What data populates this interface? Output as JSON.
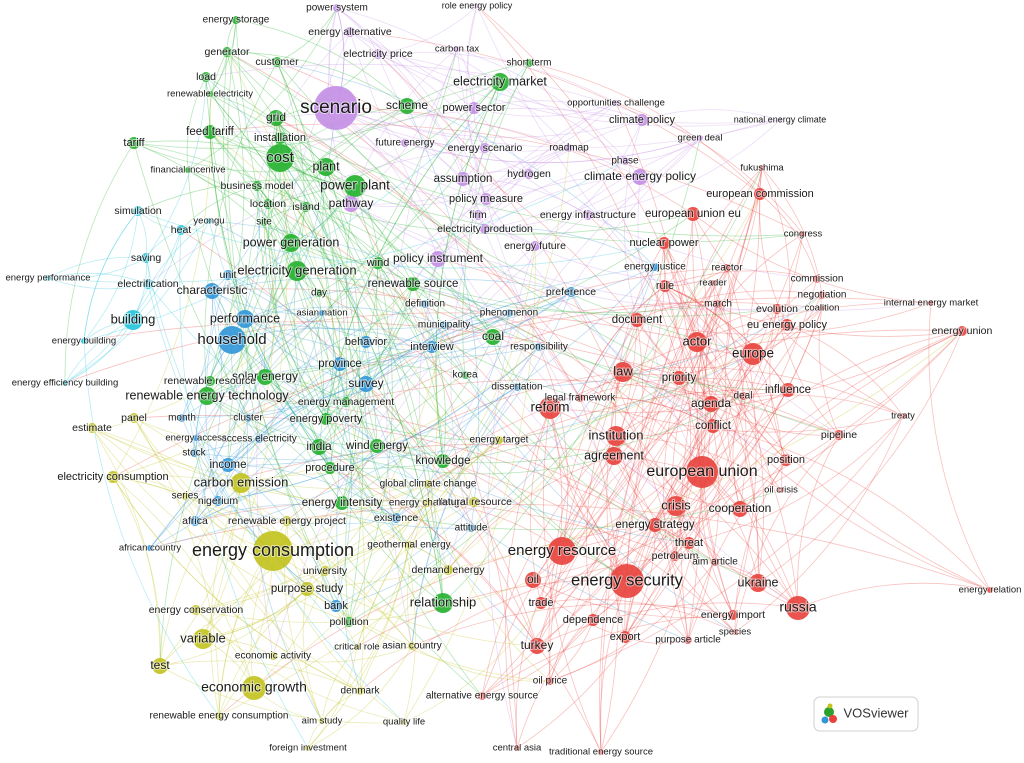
{
  "clusters": [
    {
      "color": "#e8403b",
      "nodes": [
        "fukushima",
        "european commission",
        "european union eu",
        "congress",
        "nuclear power",
        "reactor",
        "reader",
        "rule",
        "commission",
        "negotiation",
        "march",
        "evolution",
        "coalition",
        "internal energy market",
        "energy union",
        "document",
        "actor",
        "eu energy policy",
        "europe",
        "law",
        "priority",
        "influence",
        "legal framework",
        "reform",
        "agenda",
        "deal",
        "treaty",
        "conflict",
        "institution",
        "pipeline",
        "agreement",
        "position",
        "european union",
        "oil crisis",
        "crisis",
        "cooperation",
        "energy strategy",
        "threat",
        "energy resource",
        "petroleum",
        "aim article",
        "energy security",
        "oil",
        "ukraine",
        "russia",
        "energy relation",
        "trade",
        "dependence",
        "energy import",
        "export",
        "purpose article",
        "species",
        "turkey",
        "oil price",
        "alternative energy source",
        "central asia",
        "traditional energy source"
      ]
    },
    {
      "color": "#22b02c",
      "nodes": [
        "energy storage",
        "generator",
        "customer",
        "load",
        "renewable electricity",
        "short term",
        "electricity market",
        "scheme",
        "grid",
        "installation",
        "feed tariff",
        "tariff",
        "cost",
        "plant",
        "financial incentive",
        "business model",
        "power plant",
        "location",
        "island",
        "site",
        "power generation",
        "electricity generation",
        "wind",
        "renewable source",
        "day",
        "coal",
        "solar energy",
        "renewable resource",
        "renewable energy technology",
        "energy management",
        "energy poverty",
        "india",
        "wind energy",
        "procedure",
        "knowledge",
        "energy intensity",
        "relationship",
        "pollution",
        "korea"
      ]
    },
    {
      "color": "#2f96d8",
      "nodes": [
        "unit",
        "characteristic",
        "performance",
        "household",
        "behavior",
        "asian nation",
        "province",
        "survey",
        "interview",
        "definition",
        "municipality",
        "phenomenon",
        "responsibility",
        "dissertation",
        "preference",
        "energy justice",
        "cluster",
        "access electricity",
        "energy access",
        "stock",
        "month",
        "income",
        "nigerium",
        "africa",
        "african country",
        "existence",
        "attitude",
        "bank"
      ]
    },
    {
      "color": "#c2c21c",
      "nodes": [
        "panel",
        "estimate",
        "electricity consumption",
        "carbon emission",
        "series",
        "renewable energy project",
        "energy consumption",
        "global climate change",
        "energy challenge",
        "natural resource",
        "energy target",
        "geothermal energy",
        "university",
        "demand energy",
        "purpose study",
        "energy conservation",
        "variable",
        "test",
        "economic activity",
        "critical role",
        "asian country",
        "economic growth",
        "denmark",
        "renewable energy consumption",
        "aim study",
        "quality life",
        "foreign investment"
      ]
    },
    {
      "color": "#c38ee6",
      "nodes": [
        "power system",
        "role energy policy",
        "energy alternative",
        "electricity price",
        "carbon tax",
        "scenario",
        "power sector",
        "future energy",
        "energy scenario",
        "roadmap",
        "opportunities challenge",
        "climate policy",
        "green deal",
        "national energy climate",
        "assumption",
        "hydrogen",
        "phase",
        "climate energy policy",
        "pathway",
        "policy measure",
        "firm",
        "energy infrastructure",
        "electricity production",
        "energy future",
        "policy instrument"
      ]
    },
    {
      "color": "#22c3dc",
      "nodes": [
        "simulation",
        "yeongu",
        "heat",
        "saving",
        "energy performance",
        "electrification",
        "building",
        "energy building",
        "energy efficiency building"
      ]
    }
  ],
  "logo": "VOSviewer"
}
